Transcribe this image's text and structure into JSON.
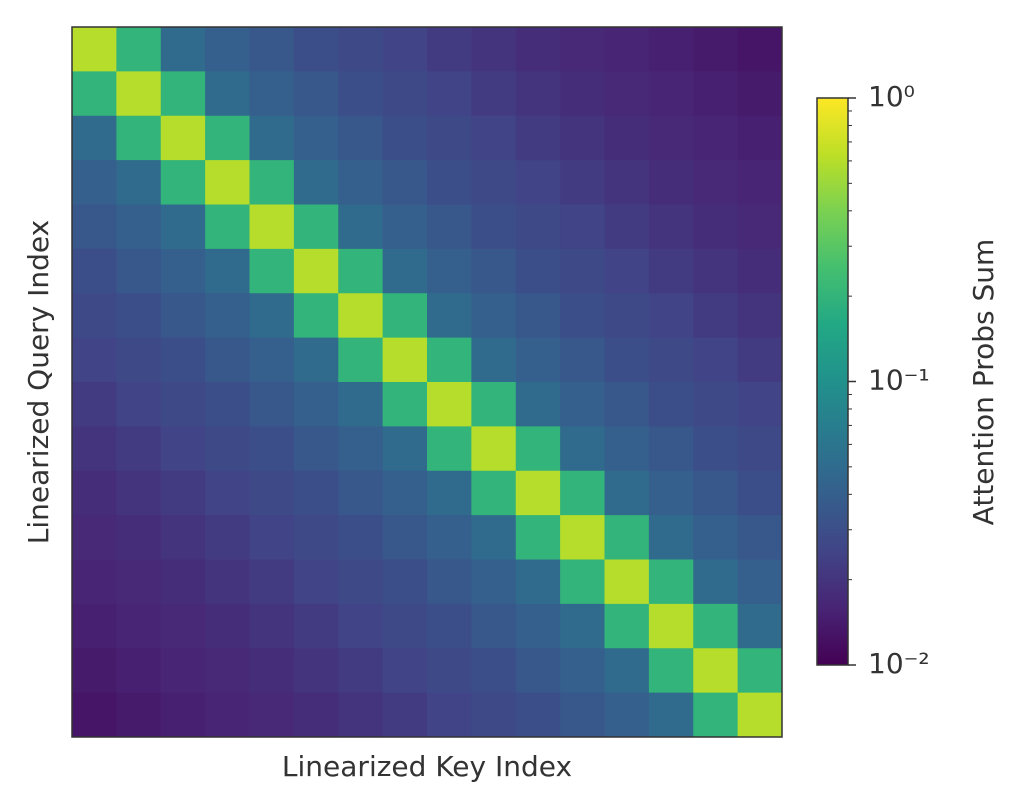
{
  "chart_data": {
    "type": "heatmap",
    "xlabel": "Linearized Key Index",
    "ylabel": "Linearized Query Index",
    "colorbar_label": "Attention Probs Sum",
    "colormap": "viridis",
    "color_scale": "log",
    "clim": [
      0.01,
      1
    ],
    "cticks": [
      {
        "value": 1,
        "label": "10⁰"
      },
      {
        "value": 0.1,
        "label": "10⁻¹"
      },
      {
        "value": 0.01,
        "label": "10⁻²"
      }
    ],
    "cticks_minor": [
      0.02,
      0.03,
      0.04,
      0.05,
      0.06,
      0.07,
      0.08,
      0.09,
      0.2,
      0.3,
      0.4,
      0.5,
      0.6,
      0.7,
      0.8,
      0.9
    ],
    "values": [
      [
        0.6,
        0.2,
        0.05,
        0.04,
        0.035,
        0.03,
        0.028,
        0.025,
        0.022,
        0.02,
        0.018,
        0.017,
        0.016,
        0.015,
        0.014,
        0.013
      ],
      [
        0.2,
        0.6,
        0.2,
        0.05,
        0.04,
        0.035,
        0.03,
        0.028,
        0.025,
        0.022,
        0.02,
        0.018,
        0.017,
        0.016,
        0.015,
        0.014
      ],
      [
        0.05,
        0.2,
        0.6,
        0.2,
        0.05,
        0.04,
        0.035,
        0.03,
        0.028,
        0.025,
        0.022,
        0.02,
        0.018,
        0.017,
        0.016,
        0.015
      ],
      [
        0.04,
        0.05,
        0.2,
        0.6,
        0.2,
        0.05,
        0.04,
        0.035,
        0.03,
        0.028,
        0.025,
        0.022,
        0.02,
        0.018,
        0.017,
        0.016
      ],
      [
        0.035,
        0.04,
        0.05,
        0.2,
        0.6,
        0.2,
        0.05,
        0.04,
        0.035,
        0.03,
        0.028,
        0.025,
        0.022,
        0.02,
        0.018,
        0.017
      ],
      [
        0.03,
        0.035,
        0.04,
        0.05,
        0.2,
        0.6,
        0.2,
        0.05,
        0.04,
        0.035,
        0.03,
        0.028,
        0.025,
        0.022,
        0.02,
        0.018
      ],
      [
        0.028,
        0.03,
        0.035,
        0.04,
        0.05,
        0.2,
        0.6,
        0.2,
        0.05,
        0.04,
        0.035,
        0.03,
        0.028,
        0.025,
        0.022,
        0.02
      ],
      [
        0.025,
        0.028,
        0.03,
        0.035,
        0.04,
        0.05,
        0.2,
        0.6,
        0.2,
        0.05,
        0.04,
        0.035,
        0.03,
        0.028,
        0.025,
        0.022
      ],
      [
        0.022,
        0.025,
        0.028,
        0.03,
        0.035,
        0.04,
        0.05,
        0.2,
        0.6,
        0.2,
        0.05,
        0.04,
        0.035,
        0.03,
        0.028,
        0.025
      ],
      [
        0.02,
        0.022,
        0.025,
        0.028,
        0.03,
        0.035,
        0.04,
        0.05,
        0.2,
        0.6,
        0.2,
        0.05,
        0.04,
        0.035,
        0.03,
        0.028
      ],
      [
        0.018,
        0.02,
        0.022,
        0.025,
        0.028,
        0.03,
        0.035,
        0.04,
        0.05,
        0.2,
        0.6,
        0.2,
        0.05,
        0.04,
        0.035,
        0.03
      ],
      [
        0.017,
        0.018,
        0.02,
        0.022,
        0.025,
        0.028,
        0.03,
        0.035,
        0.04,
        0.05,
        0.2,
        0.6,
        0.2,
        0.05,
        0.04,
        0.035
      ],
      [
        0.016,
        0.017,
        0.018,
        0.02,
        0.022,
        0.025,
        0.028,
        0.03,
        0.035,
        0.04,
        0.05,
        0.2,
        0.6,
        0.2,
        0.05,
        0.04
      ],
      [
        0.015,
        0.016,
        0.017,
        0.018,
        0.02,
        0.022,
        0.025,
        0.028,
        0.03,
        0.035,
        0.04,
        0.05,
        0.2,
        0.6,
        0.2,
        0.05
      ],
      [
        0.014,
        0.015,
        0.016,
        0.017,
        0.018,
        0.02,
        0.022,
        0.025,
        0.028,
        0.03,
        0.035,
        0.04,
        0.05,
        0.2,
        0.6,
        0.2
      ],
      [
        0.013,
        0.014,
        0.015,
        0.016,
        0.017,
        0.018,
        0.02,
        0.022,
        0.025,
        0.028,
        0.03,
        0.035,
        0.04,
        0.05,
        0.2,
        0.6
      ]
    ]
  }
}
